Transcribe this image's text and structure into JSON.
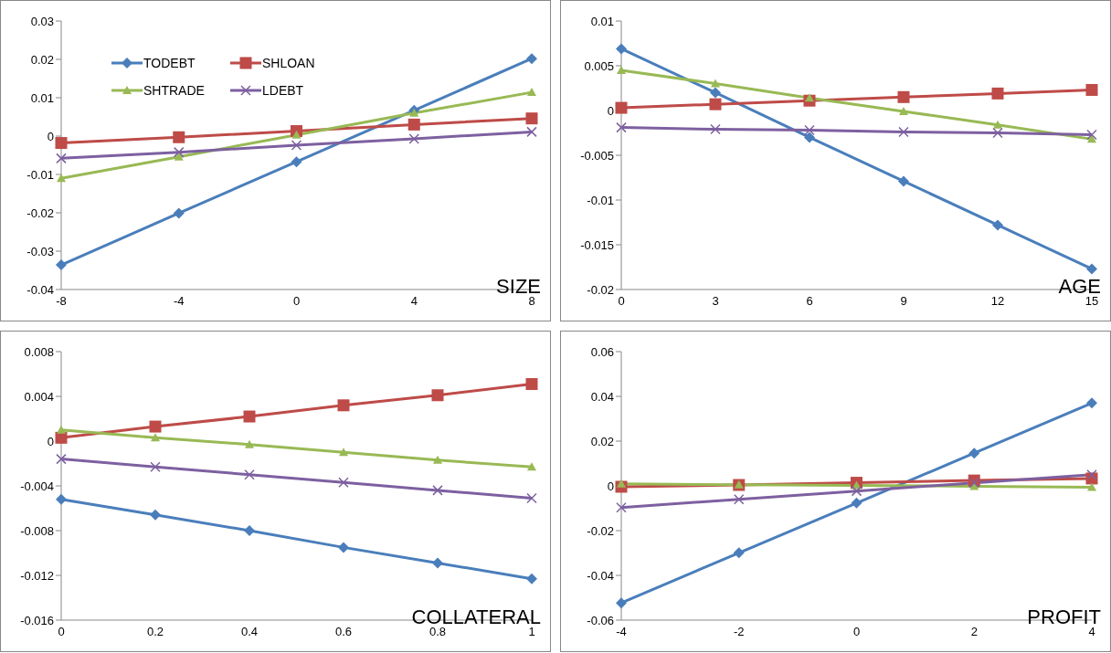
{
  "chart_data": [
    {
      "type": "line",
      "xlabel": "SIZE",
      "categories": [
        "-8",
        "-4",
        "0",
        "4",
        "8"
      ],
      "ylim": [
        -0.04,
        0.03
      ],
      "yticks": [
        -0.04,
        -0.03,
        -0.02,
        -0.01,
        0,
        0.01,
        0.02,
        0.03
      ],
      "legend": "top left",
      "grid": false,
      "series": [
        {
          "name": "TODEBT",
          "color": "#4a7ebb",
          "marker": "diamond",
          "values": [
            -0.0336,
            -0.0201,
            -0.0067,
            0.0067,
            0.0202
          ]
        },
        {
          "name": "SHLOAN",
          "color": "#be4b48",
          "marker": "square",
          "values": [
            -0.0018,
            -0.0003,
            0.0013,
            0.003,
            0.0046
          ]
        },
        {
          "name": "SHTRADE",
          "color": "#98b954",
          "marker": "triangle",
          "values": [
            -0.011,
            -0.0054,
            0.0003,
            0.006,
            0.0114
          ]
        },
        {
          "name": "LDEBT",
          "color": "#7d60a0",
          "marker": "cross",
          "values": [
            -0.0058,
            -0.0042,
            -0.0024,
            -0.0007,
            0.0011
          ]
        }
      ]
    },
    {
      "type": "line",
      "xlabel": "AGE",
      "categories": [
        "0",
        "3",
        "6",
        "9",
        "12",
        "15"
      ],
      "ylim": [
        -0.02,
        0.01
      ],
      "yticks": [
        -0.02,
        -0.015,
        -0.01,
        -0.005,
        0,
        0.005,
        0.01
      ],
      "grid": false,
      "series": [
        {
          "color": "#4a7ebb",
          "marker": "diamond",
          "values": [
            0.0069,
            0.002,
            -0.003,
            -0.0079,
            -0.0128,
            -0.0177
          ]
        },
        {
          "color": "#be4b48",
          "marker": "square",
          "values": [
            0.0003,
            0.0007,
            0.0011,
            0.0015,
            0.0019,
            0.0023
          ]
        },
        {
          "color": "#98b954",
          "marker": "triangle",
          "values": [
            0.0045,
            0.003,
            0.0014,
            -0.0001,
            -0.0016,
            -0.0032
          ]
        },
        {
          "color": "#7d60a0",
          "marker": "cross",
          "values": [
            -0.0019,
            -0.0021,
            -0.0022,
            -0.0024,
            -0.0025,
            -0.0027
          ]
        }
      ]
    },
    {
      "type": "line",
      "xlabel": "COLLATERAL",
      "categories": [
        "0",
        "0.2",
        "0.4",
        "0.6",
        "0.8",
        "1"
      ],
      "ylim": [
        -0.016,
        0.008
      ],
      "yticks": [
        -0.016,
        -0.012,
        -0.008,
        -0.004,
        0,
        0.004,
        0.008
      ],
      "grid": false,
      "series": [
        {
          "color": "#4a7ebb",
          "marker": "diamond",
          "values": [
            -0.0052,
            -0.0066,
            -0.008,
            -0.0095,
            -0.0109,
            -0.0123
          ]
        },
        {
          "color": "#be4b48",
          "marker": "square",
          "values": [
            0.0003,
            0.0013,
            0.0022,
            0.0032,
            0.0041,
            0.0051
          ]
        },
        {
          "color": "#98b954",
          "marker": "triangle",
          "values": [
            0.001,
            0.0003,
            -0.0003,
            -0.001,
            -0.0017,
            -0.0023
          ]
        },
        {
          "color": "#7d60a0",
          "marker": "cross",
          "values": [
            -0.0016,
            -0.0023,
            -0.003,
            -0.0037,
            -0.0044,
            -0.0051
          ]
        }
      ]
    },
    {
      "type": "line",
      "xlabel": "PROFIT",
      "categories": [
        "-4",
        "-2",
        "0",
        "2",
        "4"
      ],
      "ylim": [
        -0.06,
        0.06
      ],
      "yticks": [
        -0.06,
        -0.04,
        -0.02,
        0,
        0.02,
        0.04,
        0.06
      ],
      "grid": false,
      "series": [
        {
          "color": "#4a7ebb",
          "marker": "diamond",
          "values": [
            -0.0523,
            -0.0299,
            -0.0077,
            0.0146,
            0.037
          ]
        },
        {
          "color": "#be4b48",
          "marker": "square",
          "values": [
            -0.0004,
            0.0004,
            0.0014,
            0.0024,
            0.0033
          ]
        },
        {
          "color": "#98b954",
          "marker": "triangle",
          "values": [
            0.0009,
            0.0005,
            0.0002,
            -0.0002,
            -0.0006
          ]
        },
        {
          "color": "#7d60a0",
          "marker": "cross",
          "values": [
            -0.0097,
            -0.006,
            -0.0023,
            0.0013,
            0.005
          ]
        }
      ]
    }
  ]
}
